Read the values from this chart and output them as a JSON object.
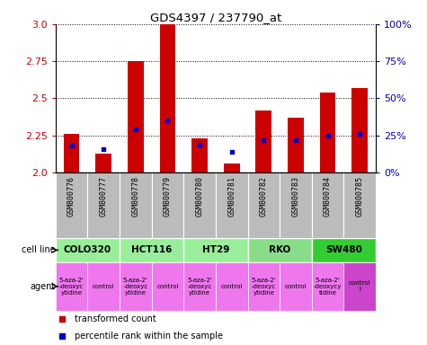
{
  "title": "GDS4397 / 237790_at",
  "samples": [
    "GSM800776",
    "GSM800777",
    "GSM800778",
    "GSM800779",
    "GSM800780",
    "GSM800781",
    "GSM800782",
    "GSM800783",
    "GSM800784",
    "GSM800785"
  ],
  "red_values": [
    2.26,
    2.13,
    2.75,
    3.0,
    2.23,
    2.06,
    2.42,
    2.37,
    2.54,
    2.57
  ],
  "blue_values": [
    2.18,
    2.16,
    2.29,
    2.35,
    2.19,
    2.14,
    2.22,
    2.22,
    2.25,
    2.26
  ],
  "ymin": 2.0,
  "ymax": 3.0,
  "yticks": [
    2.0,
    2.25,
    2.5,
    2.75,
    3.0
  ],
  "right_ytick_pcts": [
    0,
    25,
    50,
    75,
    100
  ],
  "right_ytick_labels": [
    "0%",
    "25%",
    "50%",
    "75%",
    "100%"
  ],
  "cell_lines": [
    {
      "name": "COLO320",
      "start": 0,
      "end": 2,
      "color": "#99ee99"
    },
    {
      "name": "HCT116",
      "start": 2,
      "end": 4,
      "color": "#99ee99"
    },
    {
      "name": "HT29",
      "start": 4,
      "end": 6,
      "color": "#99ee99"
    },
    {
      "name": "RKO",
      "start": 6,
      "end": 8,
      "color": "#88dd88"
    },
    {
      "name": "SW480",
      "start": 8,
      "end": 10,
      "color": "#33cc33"
    }
  ],
  "agent_texts": [
    "5-aza-2'\n-deoxyc\nytidine",
    "control",
    "5-aza-2'\n-deoxyc\nytidine",
    "control",
    "5-aza-2'\n-deoxyc\nytidine",
    "control",
    "5-aza-2'\n-deoxyc\nytidine",
    "control",
    "5-aza-2'\n-deoxycy\ntidine",
    "control\nl"
  ],
  "agent_colors": [
    "#ee77ee",
    "#ee77ee",
    "#ee77ee",
    "#ee77ee",
    "#ee77ee",
    "#ee77ee",
    "#ee77ee",
    "#ee77ee",
    "#ee77ee",
    "#cc44cc"
  ],
  "bar_color": "#cc0000",
  "dot_color": "#0000cc",
  "bar_width": 0.5,
  "left_label_color": "#cc0000",
  "right_label_color": "#0000bb",
  "sample_bg_color": "#bbbbbb",
  "legend_red": "transformed count",
  "legend_blue": "percentile rank within the sample"
}
